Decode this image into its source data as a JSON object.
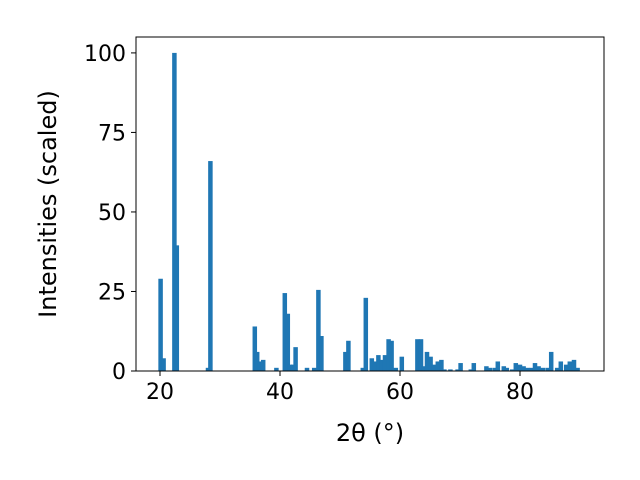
{
  "chart_data": {
    "type": "bar",
    "xlabel": "2θ (°)",
    "ylabel": "Intensities (scaled)",
    "xlim": [
      16,
      94
    ],
    "ylim": [
      0,
      105
    ],
    "xticks": [
      20,
      40,
      60,
      80
    ],
    "yticks": [
      0,
      25,
      50,
      75,
      100
    ],
    "bar_width": 0.75,
    "grid": false,
    "color": "#1f77b4",
    "x": [
      20.1,
      20.6,
      22.4,
      22.8,
      28.0,
      28.4,
      35.8,
      36.2,
      36.6,
      37.2,
      39.4,
      40.8,
      41.3,
      41.7,
      42.2,
      42.6,
      44.5,
      45.7,
      46.4,
      46.9,
      50.9,
      51.4,
      53.8,
      54.3,
      55.3,
      55.8,
      56.4,
      56.9,
      57.5,
      58.1,
      58.6,
      59.3,
      60.3,
      62.9,
      63.5,
      64.0,
      64.5,
      65.1,
      65.7,
      66.3,
      66.9,
      67.4,
      68.4,
      69.6,
      70.1,
      71.8,
      72.3,
      74.4,
      75.0,
      75.8,
      76.3,
      77.3,
      77.8,
      78.7,
      79.3,
      80.0,
      80.6,
      81.2,
      81.9,
      82.5,
      83.1,
      83.8,
      84.6,
      85.2,
      86.2,
      86.8,
      87.7,
      88.3,
      89.0,
      89.6
    ],
    "values": [
      29,
      4,
      100,
      39.5,
      1,
      66,
      14,
      6,
      3,
      3.5,
      1,
      24.5,
      18,
      2,
      2,
      7.5,
      1,
      1,
      25.5,
      11,
      6,
      9.5,
      1,
      23,
      4,
      3,
      5,
      3.5,
      5,
      10,
      9.5,
      1,
      4.5,
      10,
      10,
      1.5,
      6,
      4.5,
      2,
      3,
      3.5,
      0.5,
      0.5,
      0.5,
      2.5,
      0.5,
      2.5,
      1.5,
      1,
      1,
      3,
      1.5,
      1,
      0.5,
      2.5,
      2,
      1.5,
      1,
      1,
      2.5,
      1.5,
      1,
      1,
      6,
      1,
      3,
      2,
      3,
      3.5,
      1
    ]
  }
}
